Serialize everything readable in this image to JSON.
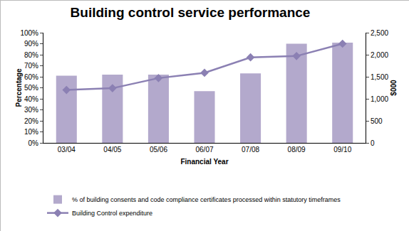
{
  "chart_data": {
    "type": "bar",
    "title": "Building control service performance",
    "x_label": "Financial Year",
    "y_label": "Percentage",
    "y2_label": "$000",
    "categories": [
      "03/04",
      "04/05",
      "05/06",
      "06/07",
      "07/08",
      "08/09",
      "09/10"
    ],
    "series": [
      {
        "name": "% of building consents and code compliance certificates processed within statutory timeframes",
        "type": "bar",
        "color": "#b3a9cc",
        "values": [
          61,
          62,
          62,
          47,
          63,
          90,
          91
        ]
      },
      {
        "name": "Building Control expenditure",
        "type": "line",
        "axis": "y2",
        "color": "#8b80b3",
        "marker": "diamond",
        "line_style": "solid",
        "values": [
          1200,
          1240,
          1470,
          1590,
          1940,
          1970,
          2250
        ]
      }
    ],
    "ylim": [
      0,
      100
    ],
    "yticks": [
      {
        "value": 0,
        "label": "0%"
      },
      {
        "value": 10,
        "label": "10%"
      },
      {
        "value": 20,
        "label": "20%"
      },
      {
        "value": 30,
        "label": "30%"
      },
      {
        "value": 40,
        "label": "40%"
      },
      {
        "value": 50,
        "label": "50%"
      },
      {
        "value": 60,
        "label": "60%"
      },
      {
        "value": 70,
        "label": "70%"
      },
      {
        "value": 80,
        "label": "80%"
      },
      {
        "value": 90,
        "label": "90%"
      },
      {
        "value": 100,
        "label": "100%"
      }
    ],
    "y2lim": [
      0,
      2500
    ],
    "y2ticks": [
      0,
      500,
      {
        "value": 1000,
        "label": "1,000"
      },
      {
        "value": 1500,
        "label": "1,500"
      },
      {
        "value": 2000,
        "label": "2,000"
      },
      {
        "value": 2500,
        "label": "2,500"
      }
    ],
    "grid": false,
    "legend": "bottom"
  }
}
